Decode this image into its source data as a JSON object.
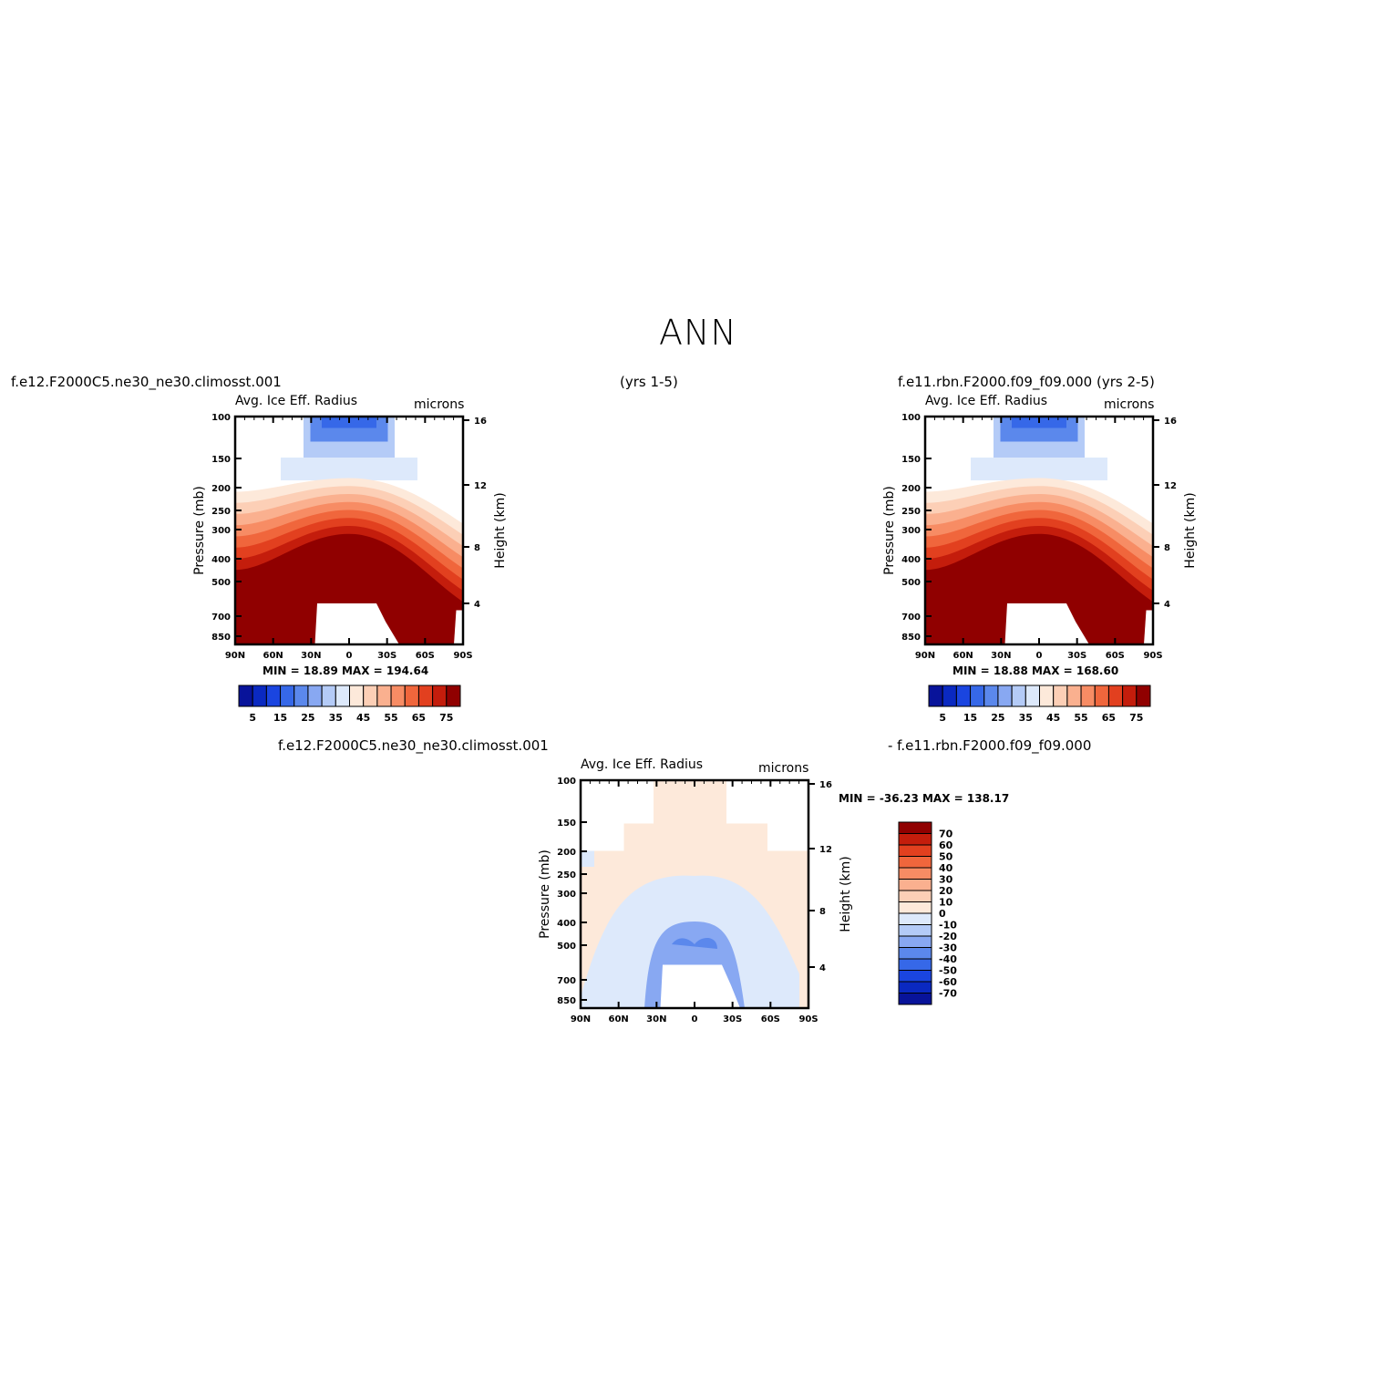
{
  "page": {
    "title": "ANN",
    "left_case": "f.e12.F2000C5.ne30_ne30.climosst.001",
    "left_years": "(yrs 1-5)",
    "right_case": "f.e11.rbn.F2000.f09_f09.000 (yrs 2-5)",
    "diff_case_a": "f.e12.F2000C5.ne30_ne30.climosst.001",
    "diff_case_b": "- f.e11.rbn.F2000.f09_f09.000"
  },
  "panels": {
    "p1": {
      "var_label": "Avg. Ice Eff. Radius",
      "units": "microns",
      "minmax": "MIN =   18.89   MAX = 194.64"
    },
    "p2": {
      "var_label": "Avg. Ice Eff. Radius",
      "units": "microns",
      "minmax": "MIN =   18.88   MAX = 168.60"
    },
    "p3": {
      "var_label": "Avg. Ice Eff. Radius",
      "units": "microns",
      "minmax": "MIN = -36.23   MAX = 138.17"
    }
  },
  "colors": {
    "warm_scale": [
      "#08139a",
      "#0a29c1",
      "#1a45e0",
      "#3668e8",
      "#5b88ec",
      "#88a8f2",
      "#b4cbf7",
      "#dde9fb",
      "#fde9da",
      "#fccfb6",
      "#fab08f",
      "#f78c64",
      "#f0663c",
      "#e2401f",
      "#c41d0c",
      "#900000"
    ],
    "diff_scale": [
      "#08139a",
      "#0a29c1",
      "#1a45e0",
      "#3668e8",
      "#5b88ec",
      "#88a8f2",
      "#b4cbf7",
      "#dde9fb",
      "#fde9da",
      "#fccfb6",
      "#fab08f",
      "#f78c64",
      "#f0663c",
      "#e2401f",
      "#c41d0c",
      "#900000"
    ]
  },
  "chart_data": [
    {
      "type": "heatmap",
      "title": "Avg. Ice Eff. Radius",
      "units": "microns",
      "xlabel": "",
      "ylabel": "Pressure (mb)",
      "ylabel_right": "Height (km)",
      "x_ticks": [
        "90N",
        "60N",
        "30N",
        "0",
        "30S",
        "60S",
        "90S"
      ],
      "y_ticks": [
        "100",
        "150",
        "200",
        "250",
        "300",
        "400",
        "500",
        "700",
        "850"
      ],
      "y_ticks_right": [
        "16",
        "12",
        "8",
        "4"
      ],
      "colorbar_labels": [
        "5",
        "15",
        "25",
        "35",
        "45",
        "55",
        "65",
        "75"
      ],
      "min": 18.89,
      "max": 194.64
    },
    {
      "type": "heatmap",
      "title": "Avg. Ice Eff. Radius",
      "units": "microns",
      "xlabel": "",
      "ylabel": "Pressure (mb)",
      "ylabel_right": "Height (km)",
      "x_ticks": [
        "90N",
        "60N",
        "30N",
        "0",
        "30S",
        "60S",
        "90S"
      ],
      "y_ticks": [
        "100",
        "150",
        "200",
        "250",
        "300",
        "400",
        "500",
        "700",
        "850"
      ],
      "y_ticks_right": [
        "16",
        "12",
        "8",
        "4"
      ],
      "colorbar_labels": [
        "5",
        "15",
        "25",
        "35",
        "45",
        "55",
        "65",
        "75"
      ],
      "min": 18.88,
      "max": 168.6
    },
    {
      "type": "heatmap",
      "title": "Avg. Ice Eff. Radius",
      "units": "microns",
      "xlabel": "",
      "ylabel": "Pressure (mb)",
      "ylabel_right": "Height (km)",
      "x_ticks": [
        "90N",
        "60N",
        "30N",
        "0",
        "30S",
        "60S",
        "90S"
      ],
      "y_ticks": [
        "100",
        "150",
        "200",
        "250",
        "300",
        "400",
        "500",
        "700",
        "850"
      ],
      "y_ticks_right": [
        "16",
        "12",
        "8",
        "4"
      ],
      "colorbar_labels": [
        "70",
        "60",
        "50",
        "40",
        "30",
        "20",
        "10",
        "0",
        "-10",
        "-20",
        "-30",
        "-40",
        "-50",
        "-60",
        "-70"
      ],
      "min": -36.23,
      "max": 138.17
    }
  ]
}
